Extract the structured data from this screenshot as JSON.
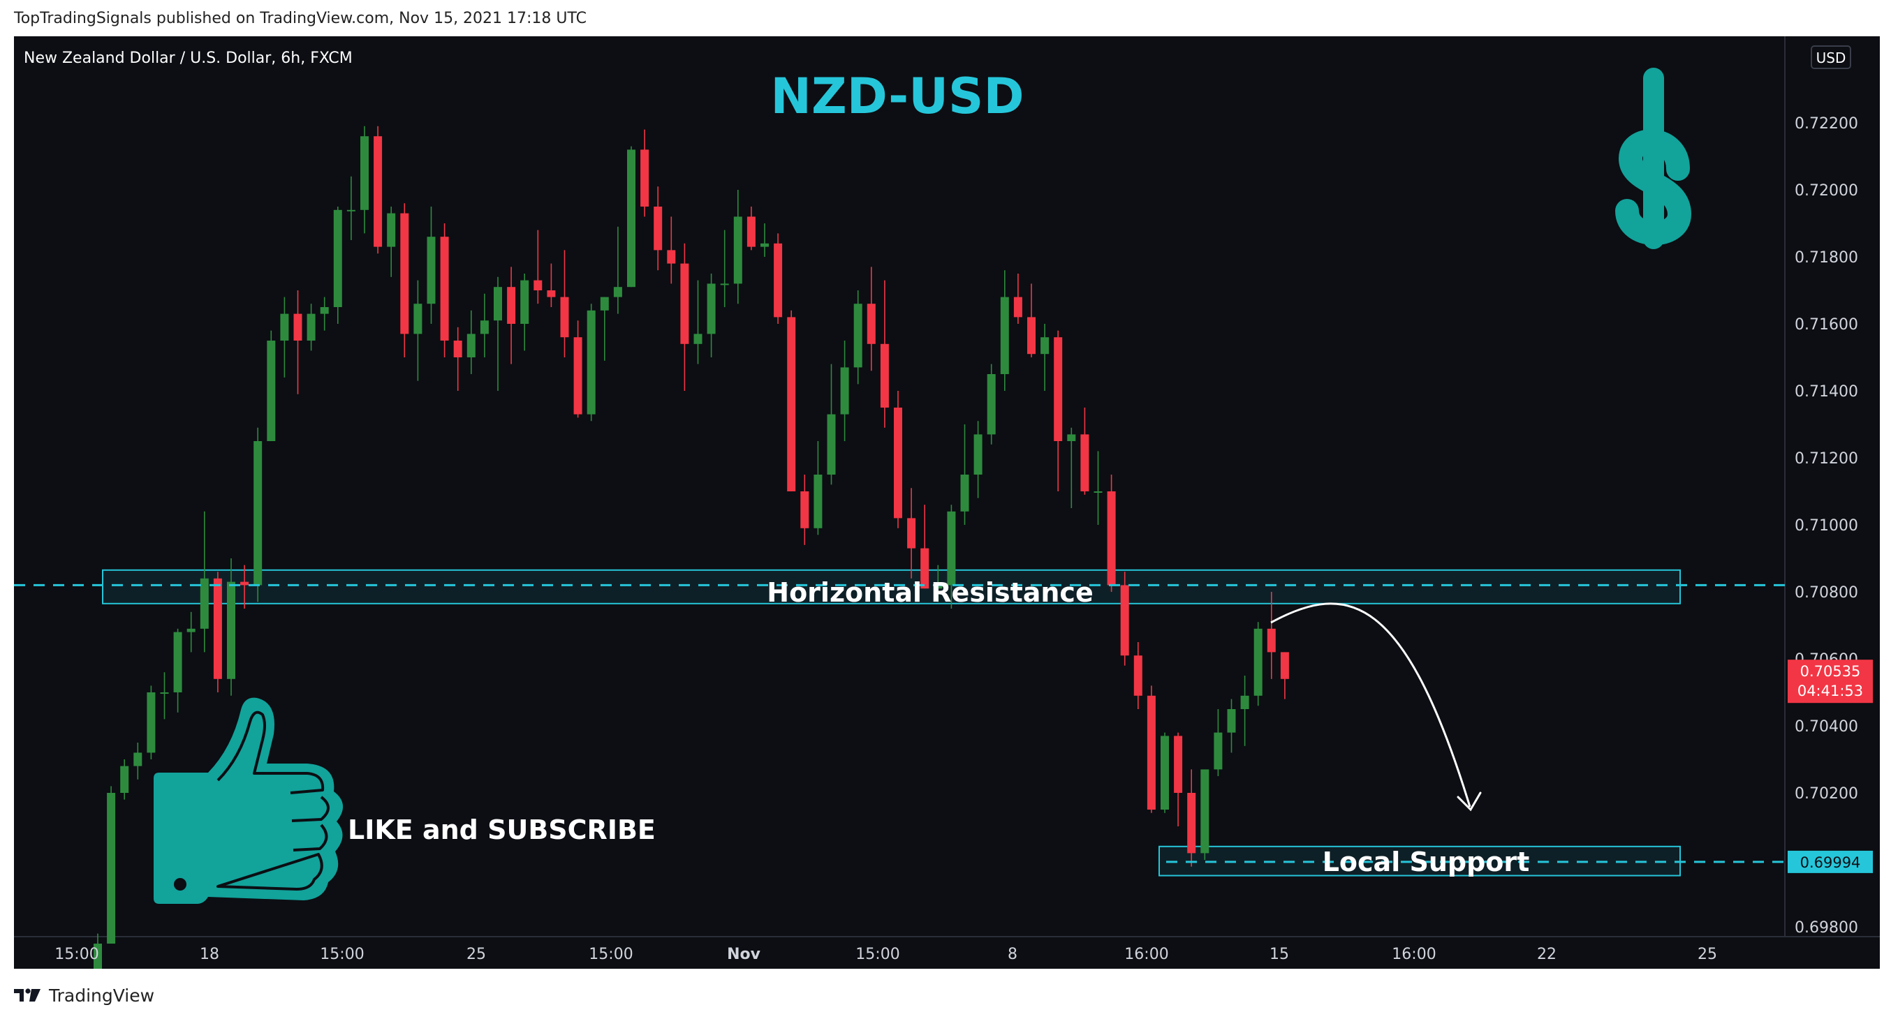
{
  "header": {
    "published_by": "TopTradingSignals published on TradingView.com, Nov 15, 2021 17:18 UTC"
  },
  "footer": {
    "brand": "TradingView"
  },
  "chart_data": {
    "type": "candlestick",
    "symbol_title": "New Zealand Dollar / U.S. Dollar, 6h, FXCM",
    "currency": "USD",
    "headline": "NZD-USD",
    "annotations": {
      "resistance": "Horizontal Resistance",
      "support": "Local Support",
      "cta": "LIKE and SUBSCRIBE"
    },
    "price_axis": {
      "ticks": [
        "0.72200",
        "0.72000",
        "0.71800",
        "0.71600",
        "0.71400",
        "0.71200",
        "0.71000",
        "0.70800",
        "0.70600",
        "0.70400",
        "0.70200",
        "0.69800"
      ],
      "ylim": [
        0.6966,
        0.7225
      ]
    },
    "time_axis": {
      "ticks": [
        "15:00",
        "18",
        "15:00",
        "25",
        "15:00",
        "Nov",
        "15:00",
        "8",
        "16:00",
        "15",
        "16:00",
        "22",
        "25"
      ]
    },
    "current_price": {
      "label": "0.70535",
      "countdown": "04:41:53",
      "value": 0.70535,
      "color": "#f23645"
    },
    "support_level": {
      "label": "0.69994",
      "value": 0.69994,
      "color": "#26c6da"
    },
    "resistance_level": {
      "value": 0.7082,
      "color": "#26c6da"
    },
    "zones": [
      {
        "name": "resistance-zone",
        "low": 0.70765,
        "high": 0.70865
      },
      {
        "name": "support-zone",
        "low": 0.69953,
        "high": 0.7004
      }
    ],
    "colors": {
      "up": "#2e8b3e",
      "down": "#f23645",
      "accent": "#26c6da",
      "dollar": "#12a39b",
      "thumb": "#12a39b"
    },
    "candles": [
      [
        0.6966,
        0.6978,
        0.6965,
        0.6975
      ],
      [
        0.6975,
        0.7022,
        0.6975,
        0.702
      ],
      [
        0.702,
        0.703,
        0.7018,
        0.7028
      ],
      [
        0.7028,
        0.7035,
        0.7024,
        0.7032
      ],
      [
        0.7032,
        0.7052,
        0.703,
        0.705
      ],
      [
        0.705,
        0.7056,
        0.7042,
        0.705
      ],
      [
        0.705,
        0.7069,
        0.7044,
        0.7068
      ],
      [
        0.7068,
        0.7074,
        0.7062,
        0.7069
      ],
      [
        0.7069,
        0.7104,
        0.7062,
        0.7084
      ],
      [
        0.7084,
        0.7086,
        0.705,
        0.7054
      ],
      [
        0.7054,
        0.709,
        0.7049,
        0.7083
      ],
      [
        0.7083,
        0.7088,
        0.7075,
        0.7082
      ],
      [
        0.7082,
        0.7129,
        0.7077,
        0.7125
      ],
      [
        0.7125,
        0.7158,
        0.7125,
        0.7155
      ],
      [
        0.7155,
        0.7168,
        0.7144,
        0.7163
      ],
      [
        0.7163,
        0.717,
        0.7139,
        0.7155
      ],
      [
        0.7155,
        0.7166,
        0.7152,
        0.7163
      ],
      [
        0.7163,
        0.7168,
        0.7158,
        0.7165
      ],
      [
        0.7165,
        0.7195,
        0.716,
        0.7194
      ],
      [
        0.7194,
        0.7204,
        0.7185,
        0.7194
      ],
      [
        0.7194,
        0.7219,
        0.7187,
        0.7216
      ],
      [
        0.7216,
        0.7219,
        0.7181,
        0.7183
      ],
      [
        0.7183,
        0.7195,
        0.7174,
        0.7193
      ],
      [
        0.7193,
        0.7196,
        0.715,
        0.7157
      ],
      [
        0.7157,
        0.7173,
        0.7143,
        0.7166
      ],
      [
        0.7166,
        0.7195,
        0.716,
        0.7186
      ],
      [
        0.7186,
        0.719,
        0.715,
        0.7155
      ],
      [
        0.7155,
        0.7159,
        0.714,
        0.715
      ],
      [
        0.715,
        0.7164,
        0.7145,
        0.7157
      ],
      [
        0.7157,
        0.7169,
        0.715,
        0.7161
      ],
      [
        0.7161,
        0.7174,
        0.714,
        0.7171
      ],
      [
        0.7171,
        0.7177,
        0.7148,
        0.716
      ],
      [
        0.716,
        0.7175,
        0.7152,
        0.7173
      ],
      [
        0.7173,
        0.7188,
        0.7166,
        0.717
      ],
      [
        0.717,
        0.7178,
        0.7165,
        0.7168
      ],
      [
        0.7168,
        0.7182,
        0.715,
        0.7156
      ],
      [
        0.7156,
        0.7161,
        0.7132,
        0.7133
      ],
      [
        0.7133,
        0.7166,
        0.7131,
        0.7164
      ],
      [
        0.7164,
        0.7168,
        0.7149,
        0.7168
      ],
      [
        0.7168,
        0.7189,
        0.7163,
        0.7171
      ],
      [
        0.7171,
        0.7213,
        0.7171,
        0.7212
      ],
      [
        0.7212,
        0.7218,
        0.7192,
        0.7195
      ],
      [
        0.7195,
        0.7201,
        0.7176,
        0.7182
      ],
      [
        0.7182,
        0.7192,
        0.7172,
        0.7178
      ],
      [
        0.7178,
        0.7184,
        0.714,
        0.7154
      ],
      [
        0.7154,
        0.7173,
        0.7148,
        0.7157
      ],
      [
        0.7157,
        0.7175,
        0.715,
        0.7172
      ],
      [
        0.7172,
        0.7188,
        0.7165,
        0.7172
      ],
      [
        0.7172,
        0.72,
        0.7166,
        0.7192
      ],
      [
        0.7192,
        0.7195,
        0.7182,
        0.7183
      ],
      [
        0.7183,
        0.719,
        0.718,
        0.7184
      ],
      [
        0.7184,
        0.7187,
        0.716,
        0.7162
      ],
      [
        0.7162,
        0.7164,
        0.711,
        0.711
      ],
      [
        0.711,
        0.7115,
        0.7094,
        0.7099
      ],
      [
        0.7099,
        0.7125,
        0.7097,
        0.7115
      ],
      [
        0.7115,
        0.7148,
        0.7112,
        0.7133
      ],
      [
        0.7133,
        0.7155,
        0.7125,
        0.7147
      ],
      [
        0.7147,
        0.717,
        0.7142,
        0.7166
      ],
      [
        0.7166,
        0.7177,
        0.7146,
        0.7154
      ],
      [
        0.7154,
        0.7173,
        0.7129,
        0.7135
      ],
      [
        0.7135,
        0.714,
        0.7099,
        0.7102
      ],
      [
        0.7102,
        0.7111,
        0.7084,
        0.7093
      ],
      [
        0.7093,
        0.7106,
        0.7081,
        0.7081
      ],
      [
        0.7081,
        0.7088,
        0.7077,
        0.7082
      ],
      [
        0.7082,
        0.7106,
        0.7075,
        0.7104
      ],
      [
        0.7104,
        0.713,
        0.71,
        0.7115
      ],
      [
        0.7115,
        0.7131,
        0.7108,
        0.7127
      ],
      [
        0.7127,
        0.7148,
        0.7124,
        0.7145
      ],
      [
        0.7145,
        0.7176,
        0.714,
        0.7168
      ],
      [
        0.7168,
        0.7175,
        0.716,
        0.7162
      ],
      [
        0.7162,
        0.7172,
        0.715,
        0.7151
      ],
      [
        0.7151,
        0.716,
        0.714,
        0.7156
      ],
      [
        0.7156,
        0.7158,
        0.711,
        0.7125
      ],
      [
        0.7125,
        0.7129,
        0.7105,
        0.7127
      ],
      [
        0.7127,
        0.7135,
        0.7109,
        0.711
      ],
      [
        0.711,
        0.7122,
        0.71,
        0.711
      ],
      [
        0.711,
        0.7115,
        0.708,
        0.7082
      ],
      [
        0.7082,
        0.7086,
        0.7058,
        0.7061
      ],
      [
        0.7061,
        0.7065,
        0.7045,
        0.7049
      ],
      [
        0.7049,
        0.7052,
        0.7014,
        0.7015
      ],
      [
        0.7015,
        0.7038,
        0.7014,
        0.7037
      ],
      [
        0.7037,
        0.7038,
        0.701,
        0.702
      ],
      [
        0.702,
        0.7027,
        0.6998,
        0.7002
      ],
      [
        0.7002,
        0.7025,
        0.7,
        0.7027
      ],
      [
        0.7027,
        0.7045,
        0.7025,
        0.7038
      ],
      [
        0.7038,
        0.7048,
        0.7032,
        0.7045
      ],
      [
        0.7045,
        0.7055,
        0.7034,
        0.7049
      ],
      [
        0.7049,
        0.7071,
        0.7046,
        0.7069
      ],
      [
        0.7069,
        0.708,
        0.7054,
        0.7062
      ],
      [
        0.7062,
        0.7062,
        0.7048,
        0.7054
      ]
    ]
  }
}
